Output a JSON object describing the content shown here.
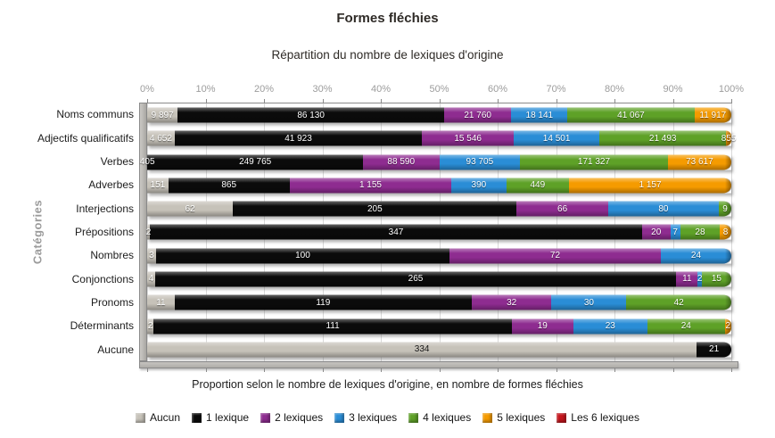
{
  "title": "Formes fléchies",
  "subtitle": "Répartition du nombre de lexiques d'origine",
  "caption": "Proportion selon le nombre de lexiques d'origine, en nombre de formes fléchies",
  "y_axis_title": "Catégories",
  "x_ticks": [
    "0%",
    "10%",
    "20%",
    "30%",
    "40%",
    "50%",
    "60%",
    "70%",
    "80%",
    "90%",
    "100%"
  ],
  "chart_data": {
    "type": "bar",
    "orientation": "horizontal",
    "stacked": true,
    "percent_scale": true,
    "xlim": [
      0,
      100
    ],
    "grid": true,
    "legend_position": "bottom",
    "categories": [
      "Noms communs",
      "Adjectifs qualificatifs",
      "Verbes",
      "Adverbes",
      "Interjections",
      "Prépositions",
      "Nombres",
      "Conjonctions",
      "Pronoms",
      "Déterminants",
      "Aucune"
    ],
    "series": [
      {
        "name": "Aucun",
        "color": "#C6C2B9",
        "values": [
          9897,
          4652,
          405,
          151,
          62,
          2,
          3,
          4,
          11,
          2,
          334
        ]
      },
      {
        "name": "1 lexique",
        "color": "#0B0B0B",
        "values": [
          86130,
          41923,
          249765,
          865,
          205,
          347,
          100,
          265,
          119,
          111,
          21
        ]
      },
      {
        "name": "2 lexiques",
        "color": "#8E2C90",
        "values": [
          21760,
          15546,
          88590,
          1155,
          66,
          20,
          72,
          11,
          32,
          19,
          0
        ]
      },
      {
        "name": "3 lexiques",
        "color": "#2A8DD6",
        "values": [
          18141,
          14501,
          93705,
          390,
          80,
          7,
          24,
          2,
          30,
          23,
          0
        ]
      },
      {
        "name": "4 lexiques",
        "color": "#5EA127",
        "values": [
          41067,
          21493,
          171327,
          449,
          9,
          28,
          0,
          15,
          42,
          24,
          0
        ]
      },
      {
        "name": "5 lexiques",
        "color": "#F59B00",
        "values": [
          11917,
          855,
          73617,
          1157,
          0,
          8,
          0,
          0,
          0,
          2,
          0
        ]
      },
      {
        "name": "Les 6 lexiques",
        "color": "#C5161D",
        "values": [
          0,
          0,
          0,
          0,
          0,
          0,
          0,
          0,
          0,
          0,
          0
        ]
      }
    ]
  }
}
